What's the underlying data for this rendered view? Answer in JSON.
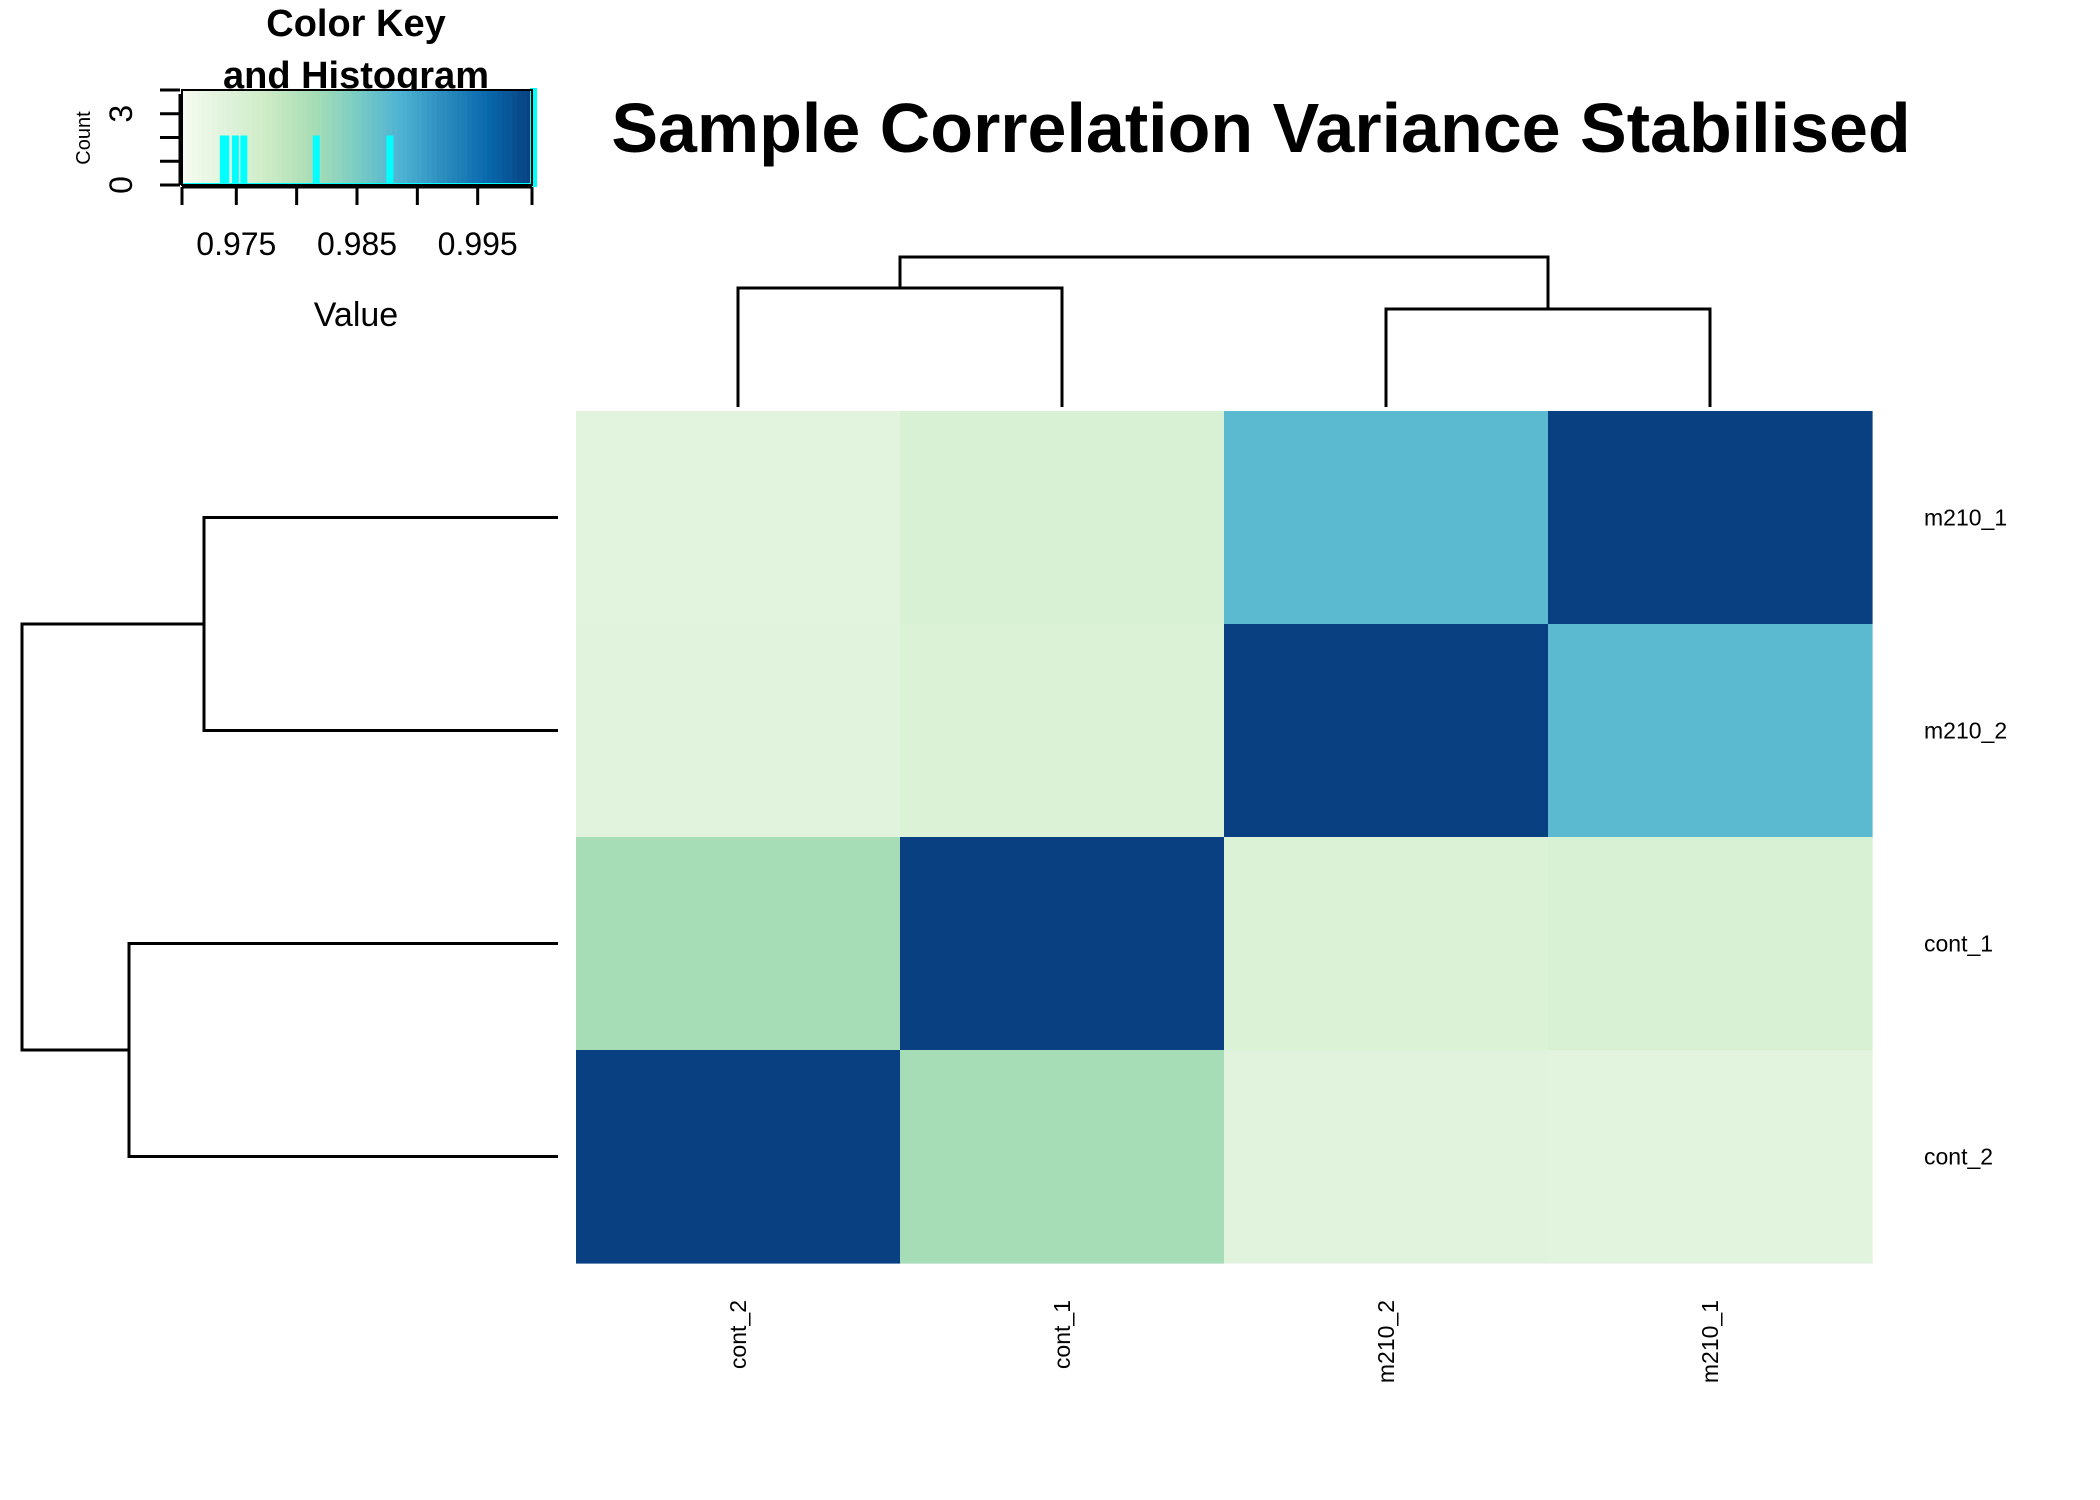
{
  "chart_data": {
    "type": "heatmap",
    "title": "Sample Correlation Variance Stabilised",
    "rows": [
      "m210_1",
      "m210_2",
      "cont_1",
      "cont_2"
    ],
    "columns": [
      "cont_2",
      "cont_1",
      "m210_2",
      "m210_1"
    ],
    "values": [
      [
        0.9738,
        0.9755,
        0.9876,
        1.0
      ],
      [
        0.974,
        0.9748,
        1.0,
        0.9876
      ],
      [
        0.9815,
        1.0,
        0.9748,
        0.9755
      ],
      [
        1.0,
        0.9815,
        0.974,
        0.9738
      ]
    ],
    "color_scale": [
      "#f7fcf0",
      "#e0f3db",
      "#ccebc5",
      "#a8ddb5",
      "#7bccc4",
      "#4eb3d3",
      "#2b8cbe",
      "#0868ac",
      "#084081"
    ],
    "color_key": {
      "title": "Color Key\nand Histogram",
      "xlabel": "Value",
      "ylabel": "Count",
      "xlim": [
        0.9705,
        0.9995
      ],
      "x_tick_values": [
        0.975,
        0.985,
        0.995
      ],
      "x_tick_labels": [
        "0.975",
        "0.985",
        "0.995"
      ],
      "y_tick_values": [
        0,
        3
      ],
      "y_tick_labels": [
        "0",
        "3"
      ],
      "ylim": [
        0,
        4
      ],
      "histogram_color": "#00ffff",
      "histogram_bins": [
        {
          "x": 0.9738,
          "count": 2
        },
        {
          "x": 0.974,
          "count": 2
        },
        {
          "x": 0.9748,
          "count": 2
        },
        {
          "x": 0.9755,
          "count": 2
        },
        {
          "x": 0.9815,
          "count": 2
        },
        {
          "x": 0.9876,
          "count": 2
        },
        {
          "x": 1.0,
          "count": 4
        }
      ]
    },
    "row_dendrogram": "((m210_1,m210_2),(cont_1,cont_2))",
    "column_dendrogram": "((cont_2,cont_1),(m210_2,m210_1))"
  }
}
